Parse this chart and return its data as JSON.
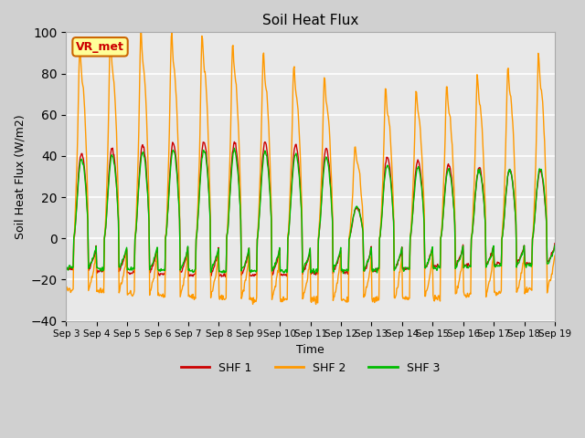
{
  "title": "Soil Heat Flux",
  "ylabel": "Soil Heat Flux (W/m2)",
  "xlabel": "Time",
  "ylim": [
    -40,
    100
  ],
  "yticks": [
    -40,
    -20,
    0,
    20,
    40,
    60,
    80,
    100
  ],
  "background_color": "#e8e8e8",
  "grid_color": "white",
  "shf1_color": "#cc0000",
  "shf2_color": "#ff9900",
  "shf3_color": "#00bb00",
  "legend_labels": [
    "SHF 1",
    "SHF 2",
    "SHF 3"
  ],
  "annotation_text": "VR_met",
  "annotation_color": "#cc0000",
  "annotation_bg": "#ffff99",
  "annotation_border": "#cc6600",
  "n_days": 16,
  "samples_per_day": 48
}
